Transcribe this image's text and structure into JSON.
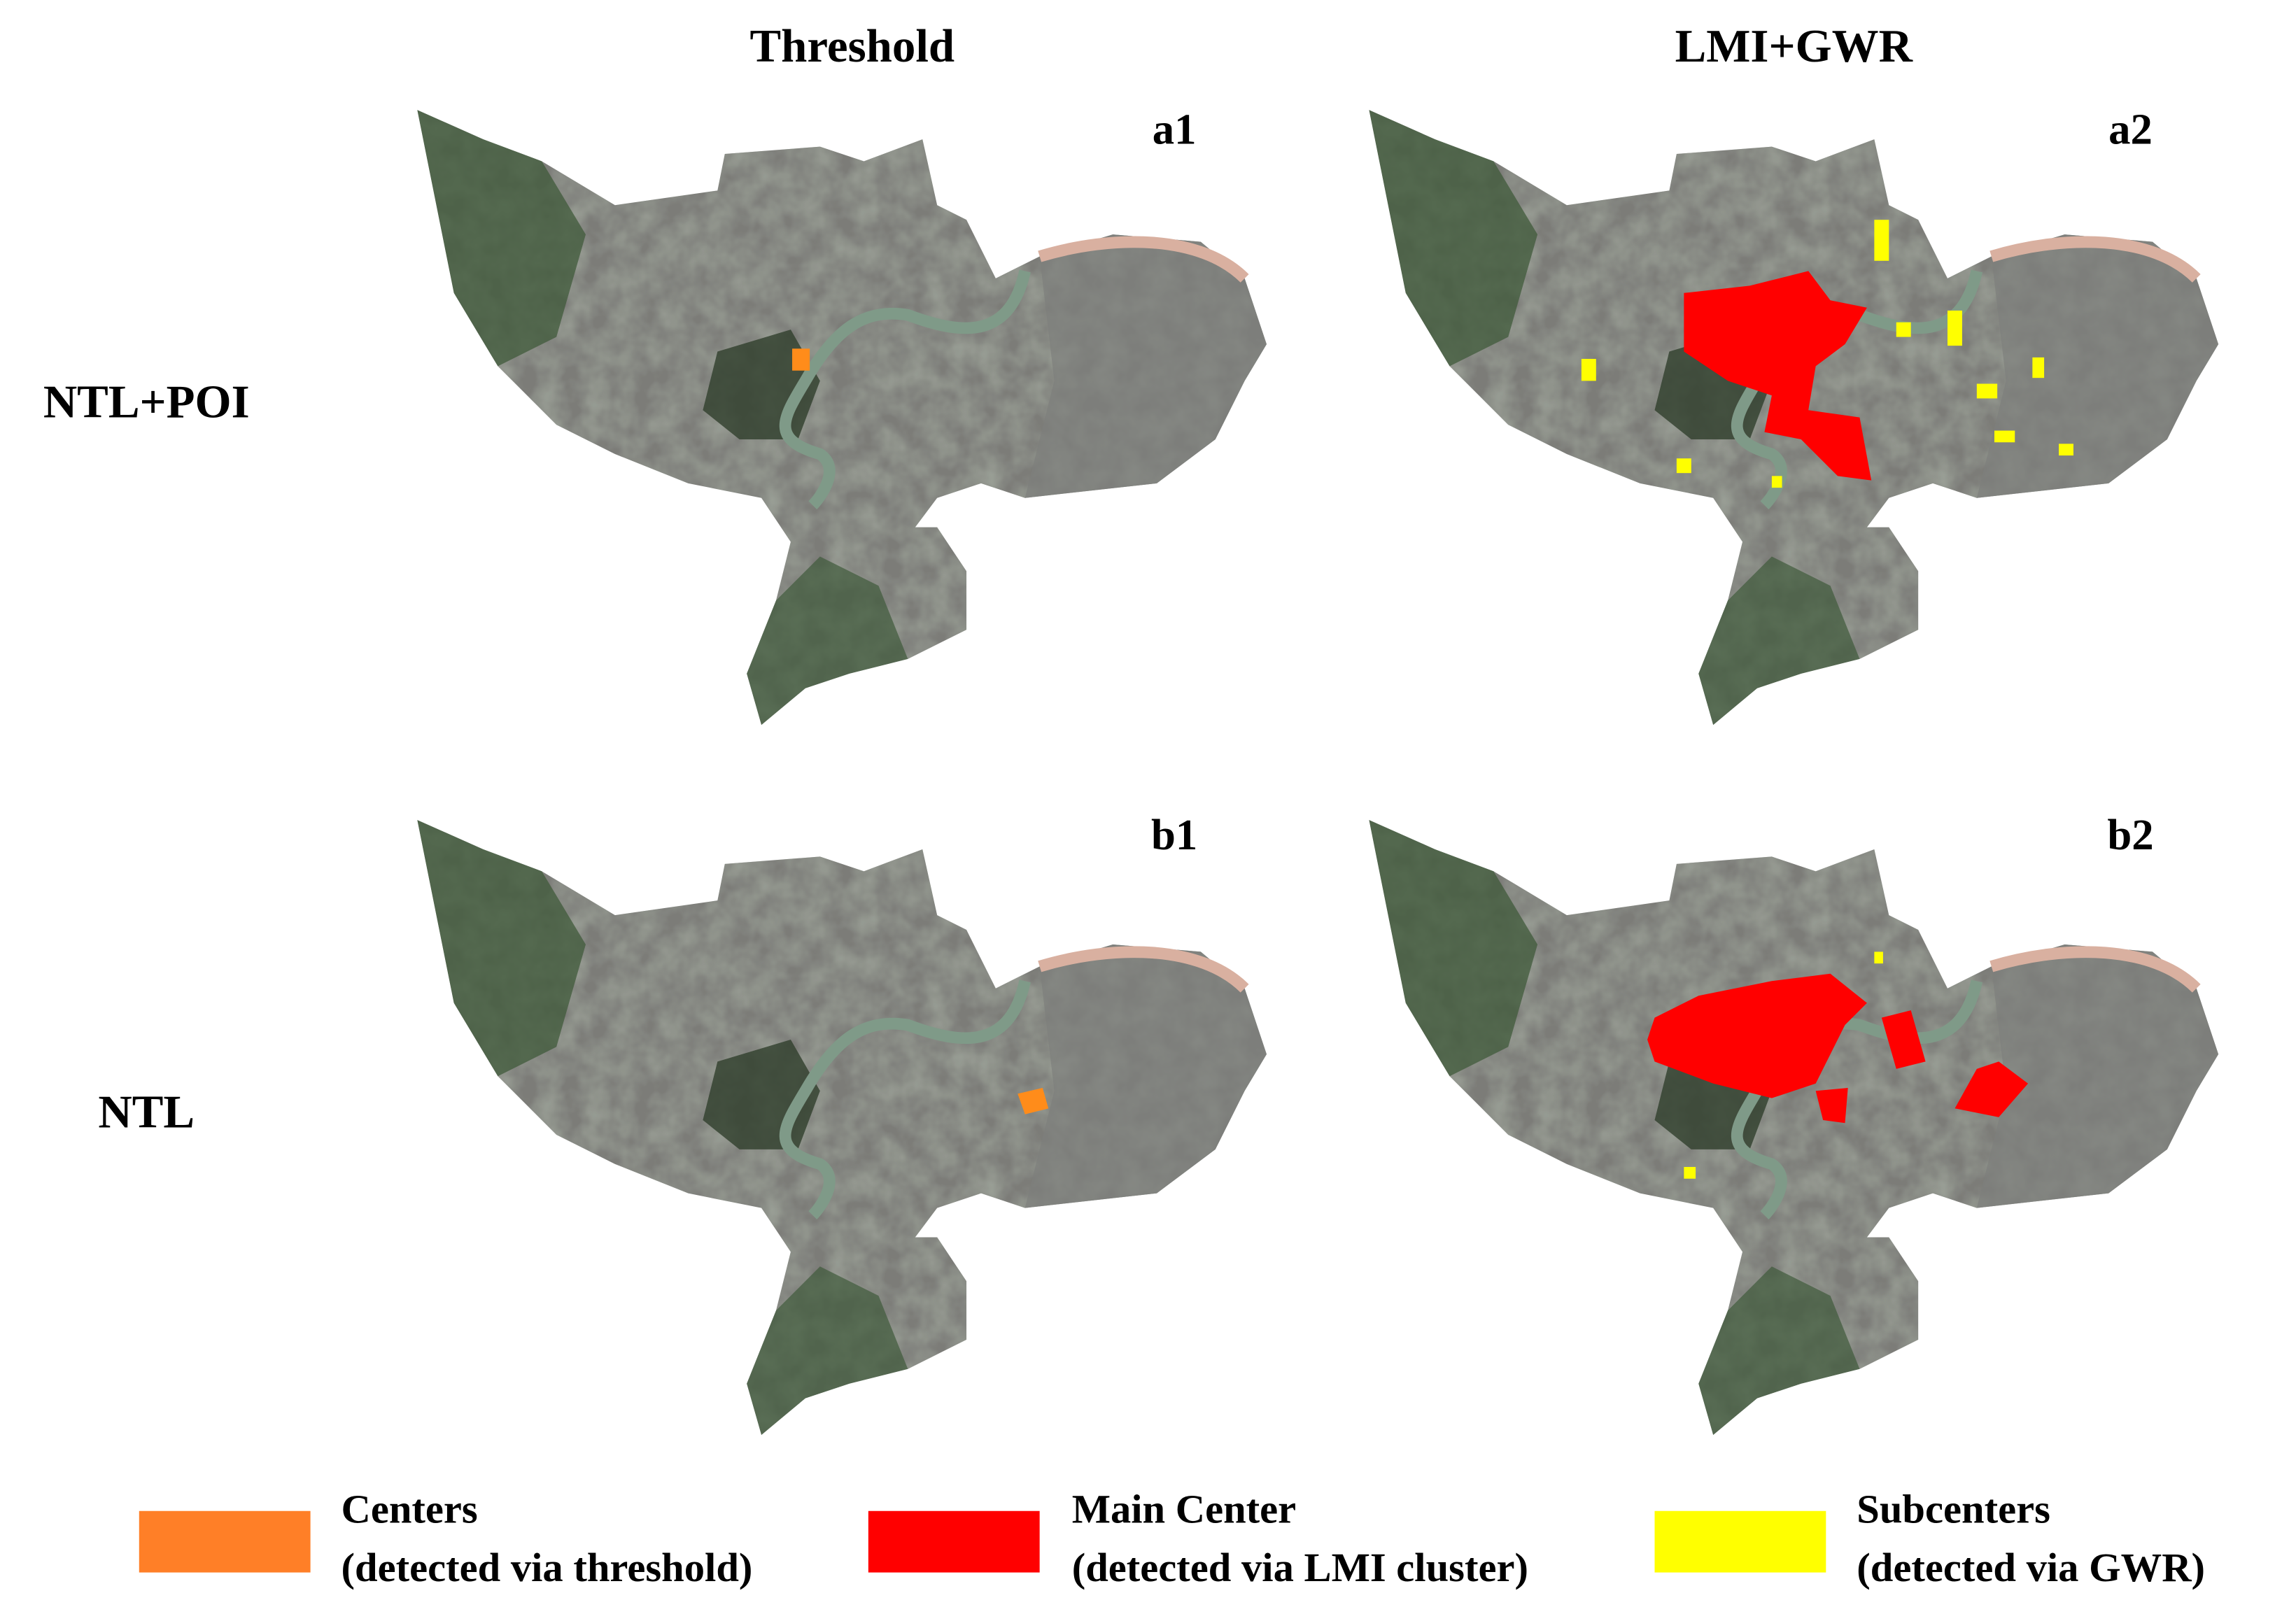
{
  "columns": [
    "Threshold",
    "LMI+GWR"
  ],
  "rows": [
    "NTL+POI",
    "NTL"
  ],
  "panels": [
    "a1",
    "a2",
    "b1",
    "b2"
  ],
  "legend": [
    {
      "title": "Centers",
      "subtitle": "(detected via threshold)"
    },
    {
      "title": "Main Center",
      "subtitle": "(detected via LMI cluster)"
    },
    {
      "title": "Subcenters",
      "subtitle": "(detected via GWR)"
    }
  ]
}
